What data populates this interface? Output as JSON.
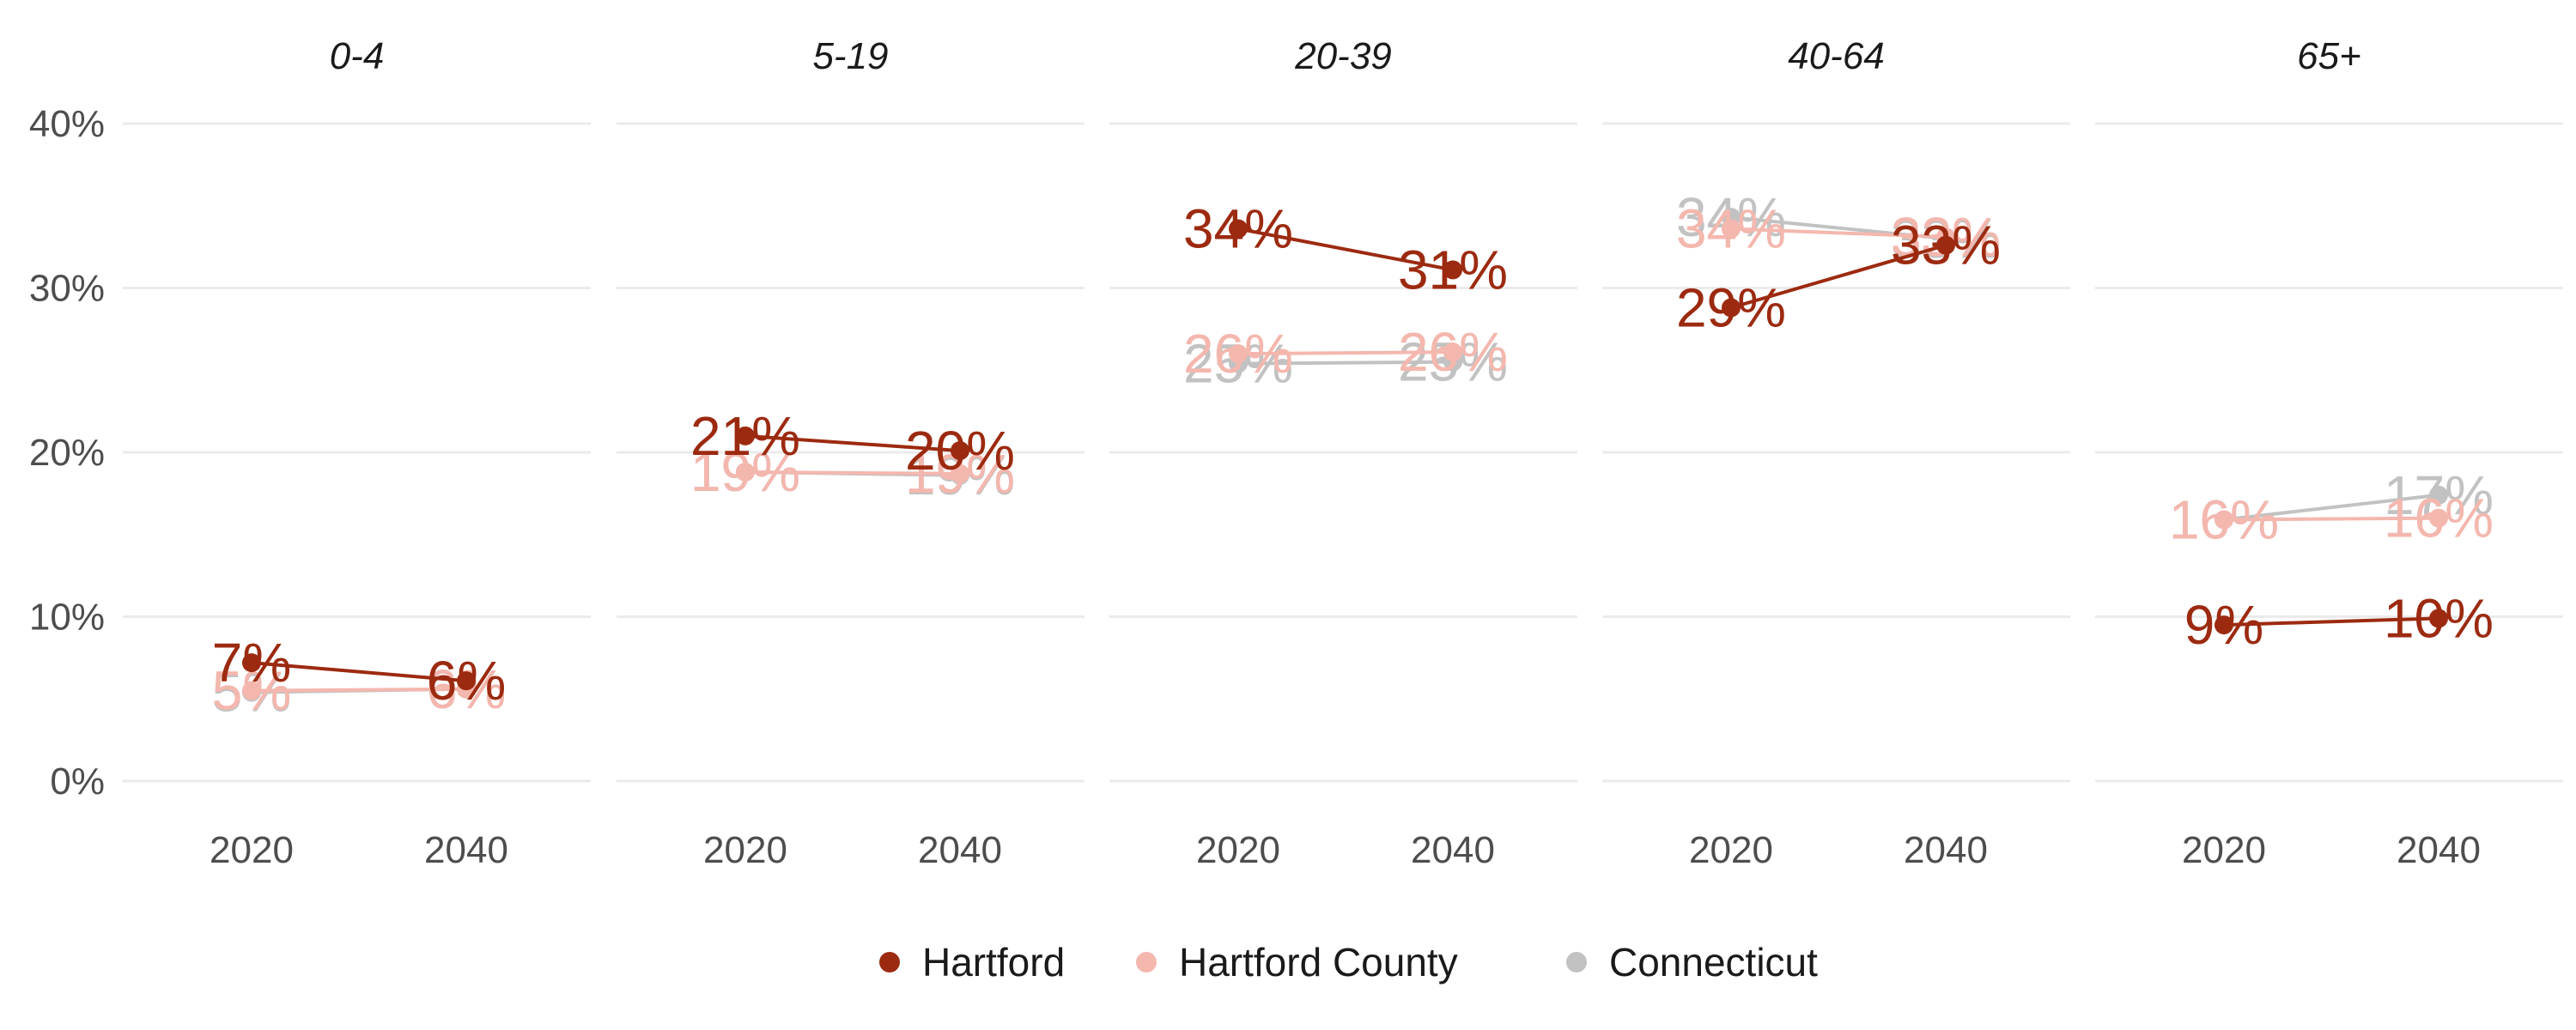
{
  "chart_data": {
    "type": "line",
    "facets": [
      "0-4",
      "5-19",
      "20-39",
      "40-64",
      "65+"
    ],
    "x": [
      "2020",
      "2040"
    ],
    "y_ticks": [
      "0%",
      "10%",
      "20%",
      "30%",
      "40%"
    ],
    "ylim": [
      0,
      40
    ],
    "grid": true,
    "legend_position": "bottom",
    "series": [
      {
        "name": "Hartford",
        "color": "#9c2a10",
        "values": [
          [
            7.2,
            6.1
          ],
          [
            21.0,
            20.1
          ],
          [
            33.6,
            31.1
          ],
          [
            28.8,
            32.6
          ],
          [
            9.5,
            9.9
          ]
        ],
        "labels": [
          [
            "7%",
            "6%"
          ],
          [
            "21%",
            "20%"
          ],
          [
            "34%",
            "31%"
          ],
          [
            "29%",
            "33%"
          ],
          [
            "9%",
            "10%"
          ]
        ]
      },
      {
        "name": "Hartford County",
        "color": "#f4b7ae",
        "values": [
          [
            5.5,
            5.6
          ],
          [
            18.8,
            18.7
          ],
          [
            26.0,
            26.1
          ],
          [
            33.6,
            33.1
          ],
          [
            15.9,
            16.0
          ]
        ],
        "labels": [
          [
            "5%",
            "6%"
          ],
          [
            "19%",
            "19%"
          ],
          [
            "26%",
            "26%"
          ],
          [
            "34%",
            "33%"
          ],
          [
            "16%",
            "16%"
          ]
        ]
      },
      {
        "name": "Connecticut",
        "color": "#c2c2c2",
        "values": [
          [
            5.4,
            5.6
          ],
          [
            18.8,
            18.6
          ],
          [
            25.4,
            25.5
          ],
          [
            34.3,
            33.0
          ],
          [
            15.9,
            17.4
          ]
        ],
        "labels": [
          [
            "5%",
            "6%"
          ],
          [
            "19%",
            "19%"
          ],
          [
            "25%",
            "25%"
          ],
          [
            "34%",
            "33%"
          ],
          [
            "16%",
            "17%"
          ]
        ]
      }
    ]
  }
}
